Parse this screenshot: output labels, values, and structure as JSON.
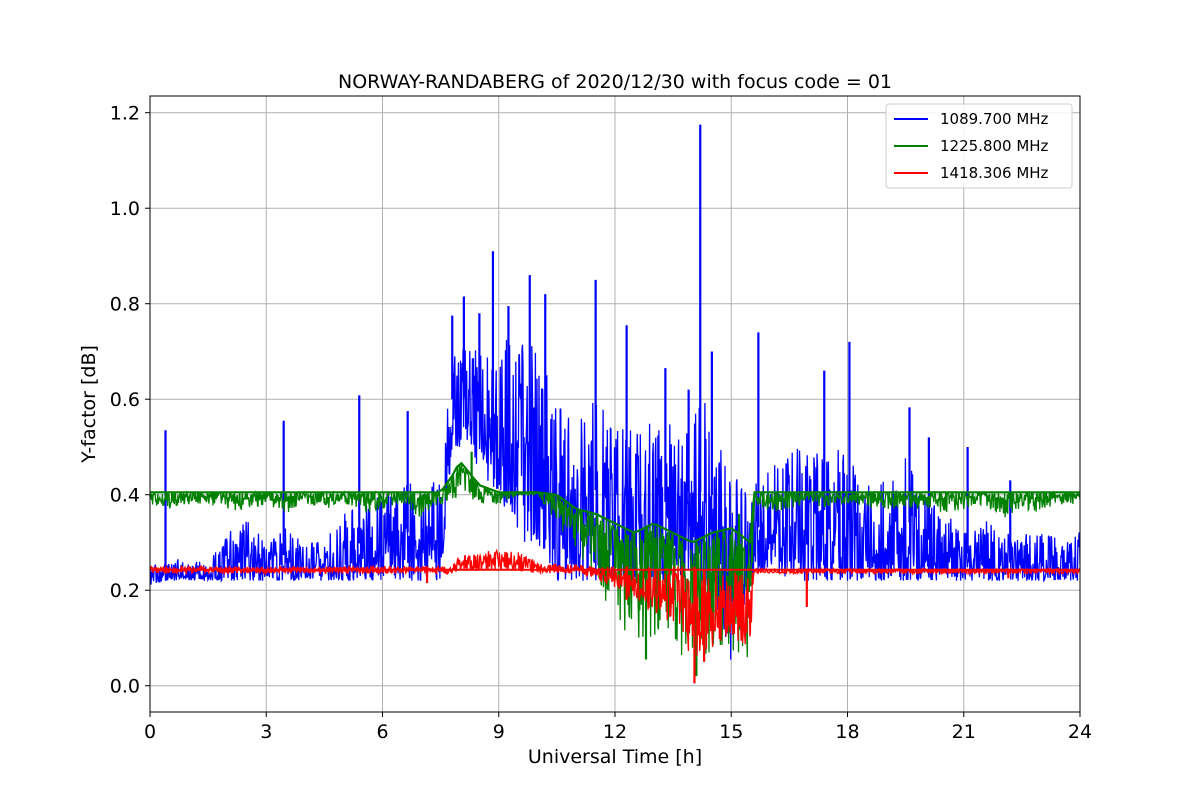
{
  "chart_data": {
    "type": "line",
    "title": "NORWAY-RANDABERG of 2020/12/30 with focus code = 01",
    "xlabel": "Universal Time [h]",
    "ylabel": "Y-factor [dB]",
    "xlim": [
      0,
      24
    ],
    "ylim": [
      -0.055,
      1.235
    ],
    "xticks": [
      0,
      3,
      6,
      9,
      12,
      15,
      18,
      21,
      24
    ],
    "xtick_labels": [
      "0",
      "3",
      "6",
      "9",
      "12",
      "15",
      "18",
      "21",
      "24"
    ],
    "yticks": [
      0.0,
      0.2,
      0.4,
      0.6,
      0.8,
      1.0,
      1.2
    ],
    "ytick_labels": [
      "0.0",
      "0.2",
      "0.4",
      "0.6",
      "0.8",
      "1.0",
      "1.2"
    ],
    "grid": true,
    "legend_position": "top-right",
    "series": [
      {
        "name": "1089.700 MHz",
        "color": "#0000ff",
        "envelope": {
          "x": [
            0,
            0.5,
            1,
            1.5,
            2,
            2.5,
            3,
            3.5,
            4,
            4.5,
            5,
            5.5,
            6,
            6.5,
            7,
            7.5,
            7.8,
            8,
            8.5,
            9,
            9.5,
            10,
            10.5,
            11,
            11.5,
            12,
            12.5,
            13,
            13.5,
            14,
            14.5,
            15,
            15.5,
            16,
            16.5,
            17,
            17.5,
            18,
            18.5,
            19,
            19.5,
            20,
            20.5,
            21,
            21.5,
            22,
            22.5,
            23,
            23.5,
            24
          ],
          "low": [
            0.21,
            0.22,
            0.22,
            0.22,
            0.22,
            0.22,
            0.22,
            0.22,
            0.22,
            0.22,
            0.22,
            0.22,
            0.22,
            0.22,
            0.22,
            0.22,
            0.5,
            0.5,
            0.45,
            0.4,
            0.3,
            0.3,
            0.22,
            0.22,
            0.22,
            0.22,
            0.22,
            0.22,
            0.22,
            0.22,
            0.2,
            0.05,
            0.22,
            0.25,
            0.22,
            0.22,
            0.22,
            0.22,
            0.22,
            0.22,
            0.22,
            0.22,
            0.22,
            0.22,
            0.22,
            0.22,
            0.22,
            0.22,
            0.22,
            0.22
          ],
          "high": [
            0.25,
            0.27,
            0.26,
            0.26,
            0.32,
            0.35,
            0.3,
            0.33,
            0.3,
            0.31,
            0.36,
            0.38,
            0.4,
            0.42,
            0.43,
            0.45,
            0.7,
            0.72,
            0.7,
            0.72,
            0.75,
            0.7,
            0.6,
            0.55,
            0.6,
            0.58,
            0.55,
            0.55,
            0.55,
            0.6,
            0.6,
            0.45,
            0.42,
            0.45,
            0.5,
            0.5,
            0.52,
            0.48,
            0.42,
            0.45,
            0.48,
            0.4,
            0.36,
            0.33,
            0.35,
            0.32,
            0.32,
            0.32,
            0.31,
            0.33
          ]
        },
        "spikes": [
          {
            "x": 0.4,
            "y": 0.535
          },
          {
            "x": 3.45,
            "y": 0.555
          },
          {
            "x": 5.4,
            "y": 0.608
          },
          {
            "x": 6.65,
            "y": 0.575
          },
          {
            "x": 7.8,
            "y": 0.775
          },
          {
            "x": 8.1,
            "y": 0.815
          },
          {
            "x": 8.5,
            "y": 0.78
          },
          {
            "x": 8.85,
            "y": 0.91
          },
          {
            "x": 9.25,
            "y": 0.795
          },
          {
            "x": 9.8,
            "y": 0.86
          },
          {
            "x": 10.2,
            "y": 0.82
          },
          {
            "x": 11.5,
            "y": 0.85
          },
          {
            "x": 12.3,
            "y": 0.755
          },
          {
            "x": 12.8,
            "y": 0.55
          },
          {
            "x": 13.3,
            "y": 0.665
          },
          {
            "x": 13.9,
            "y": 0.62
          },
          {
            "x": 14.2,
            "y": 1.175
          },
          {
            "x": 14.5,
            "y": 0.7
          },
          {
            "x": 15.7,
            "y": 0.74
          },
          {
            "x": 17.4,
            "y": 0.66
          },
          {
            "x": 18.05,
            "y": 0.72
          },
          {
            "x": 19.6,
            "y": 0.583
          },
          {
            "x": 20.1,
            "y": 0.52
          },
          {
            "x": 21.1,
            "y": 0.5
          },
          {
            "x": 22.2,
            "y": 0.43
          }
        ]
      },
      {
        "name": "1225.800 MHz",
        "color": "#008000",
        "envelope": {
          "x": [
            0,
            0.5,
            1,
            1.5,
            2,
            2.5,
            3,
            3.5,
            4,
            4.5,
            5,
            5.5,
            6,
            6.5,
            7,
            7.5,
            7.8,
            8,
            8.5,
            9,
            9.5,
            10,
            10.5,
            11,
            11.5,
            12,
            12.5,
            13,
            13.5,
            14,
            14.5,
            15,
            15.5,
            15.6,
            16,
            16.5,
            17,
            17.5,
            18,
            18.5,
            19,
            19.5,
            20,
            20.5,
            21,
            21.5,
            22,
            22.5,
            23,
            23.5,
            24
          ],
          "low": [
            0.38,
            0.37,
            0.38,
            0.38,
            0.37,
            0.36,
            0.38,
            0.36,
            0.38,
            0.37,
            0.38,
            0.36,
            0.37,
            0.38,
            0.35,
            0.38,
            0.38,
            0.41,
            0.38,
            0.38,
            0.4,
            0.4,
            0.34,
            0.28,
            0.23,
            0.13,
            0.08,
            0.1,
            0.09,
            0.03,
            0.05,
            0.07,
            0.05,
            0.38,
            0.36,
            0.37,
            0.38,
            0.37,
            0.38,
            0.37,
            0.37,
            0.37,
            0.37,
            0.36,
            0.37,
            0.38,
            0.35,
            0.37,
            0.36,
            0.38,
            0.38
          ],
          "high": [
            0.405,
            0.405,
            0.405,
            0.405,
            0.405,
            0.405,
            0.405,
            0.405,
            0.405,
            0.405,
            0.405,
            0.405,
            0.405,
            0.405,
            0.405,
            0.405,
            0.44,
            0.47,
            0.42,
            0.405,
            0.405,
            0.405,
            0.4,
            0.37,
            0.36,
            0.34,
            0.32,
            0.34,
            0.32,
            0.3,
            0.32,
            0.33,
            0.3,
            0.405,
            0.405,
            0.405,
            0.405,
            0.405,
            0.405,
            0.405,
            0.405,
            0.405,
            0.405,
            0.405,
            0.405,
            0.405,
            0.405,
            0.405,
            0.405,
            0.405,
            0.405
          ]
        },
        "spikes": [
          {
            "x": 8.3,
            "y": 0.49
          },
          {
            "x": 12.8,
            "y": 0.055
          },
          {
            "x": 14.1,
            "y": 0.02
          },
          {
            "x": 15.2,
            "y": 0.36
          }
        ]
      },
      {
        "name": "1418.306 MHz",
        "color": "#ff0000",
        "envelope": {
          "x": [
            0,
            1,
            2,
            3,
            4,
            5,
            6,
            7,
            7.8,
            8,
            9,
            9.5,
            10,
            10.5,
            11,
            11.5,
            12,
            12.5,
            13,
            13.5,
            14,
            14.5,
            15,
            15.5,
            15.6,
            16,
            17,
            18,
            19,
            20,
            21,
            22,
            23,
            24
          ],
          "low": [
            0.235,
            0.235,
            0.235,
            0.235,
            0.235,
            0.235,
            0.235,
            0.235,
            0.235,
            0.24,
            0.24,
            0.24,
            0.235,
            0.235,
            0.235,
            0.225,
            0.2,
            0.18,
            0.15,
            0.12,
            0.05,
            0.08,
            0.1,
            0.08,
            0.235,
            0.235,
            0.235,
            0.235,
            0.235,
            0.235,
            0.235,
            0.235,
            0.235,
            0.235
          ],
          "high": [
            0.25,
            0.25,
            0.25,
            0.25,
            0.25,
            0.25,
            0.25,
            0.25,
            0.25,
            0.275,
            0.285,
            0.28,
            0.26,
            0.255,
            0.255,
            0.25,
            0.25,
            0.25,
            0.25,
            0.25,
            0.25,
            0.24,
            0.24,
            0.24,
            0.245,
            0.245,
            0.245,
            0.245,
            0.245,
            0.245,
            0.245,
            0.245,
            0.245,
            0.245
          ]
        },
        "spikes": [
          {
            "x": 7.15,
            "y": 0.215
          },
          {
            "x": 12.3,
            "y": 0.18
          },
          {
            "x": 14.05,
            "y": 0.005
          },
          {
            "x": 14.3,
            "y": 0.05
          },
          {
            "x": 16.95,
            "y": 0.165
          },
          {
            "x": 22.15,
            "y": 0.225
          }
        ]
      }
    ]
  }
}
